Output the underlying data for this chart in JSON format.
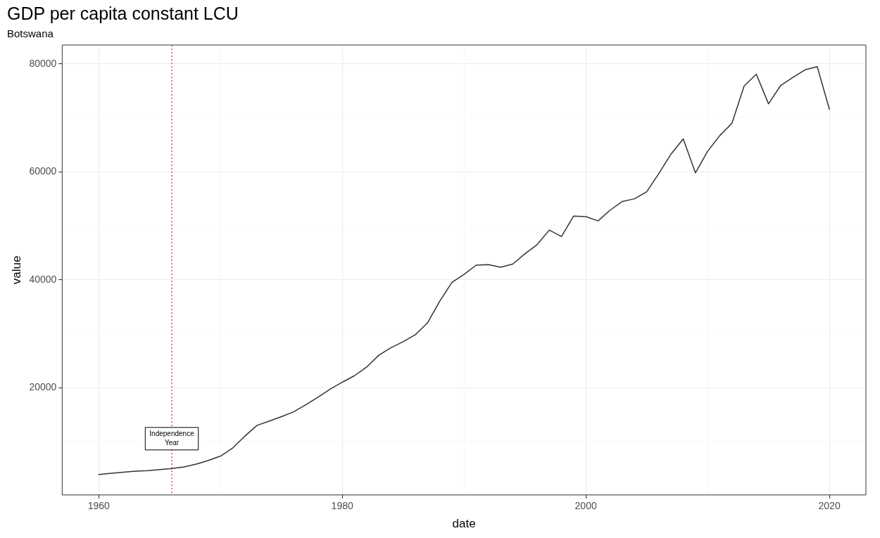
{
  "chart_data": {
    "type": "line",
    "title": "GDP per capita constant LCU",
    "subtitle": "Botswana",
    "xlabel": "date",
    "ylabel": "value",
    "x": [
      1960,
      1961,
      1962,
      1963,
      1964,
      1965,
      1966,
      1967,
      1968,
      1969,
      1970,
      1971,
      1972,
      1973,
      1974,
      1975,
      1976,
      1977,
      1978,
      1979,
      1980,
      1981,
      1982,
      1983,
      1984,
      1985,
      1986,
      1987,
      1988,
      1989,
      1990,
      1991,
      1992,
      1993,
      1994,
      1995,
      1996,
      1997,
      1998,
      1999,
      2000,
      2001,
      2002,
      2003,
      2004,
      2005,
      2006,
      2007,
      2008,
      2009,
      2010,
      2011,
      2012,
      2013,
      2014,
      2015,
      2016,
      2017,
      2018,
      2019,
      2020
    ],
    "series": [
      {
        "color": "#333333",
        "values": [
          3900,
          4100,
          4300,
          4500,
          4600,
          4800,
          5000,
          5300,
          5800,
          6500,
          7300,
          8800,
          11000,
          13000,
          13800,
          14600,
          15500,
          16800,
          18200,
          19700,
          21000,
          22200,
          23800,
          26000,
          27400,
          28500,
          29800,
          32000,
          36000,
          39500,
          41000,
          42700,
          42800,
          42300,
          42900,
          44800,
          46500,
          49200,
          48000,
          51800,
          51700,
          50900,
          52900,
          54500,
          55000,
          56300,
          59700,
          63300,
          66100,
          59800,
          63800,
          66700,
          69000,
          75900,
          78100,
          72600,
          76000,
          77500,
          78900,
          79500,
          71600
        ]
      }
    ],
    "xlim": [
      1957,
      2023
    ],
    "xticks": [
      1960,
      {
        "value": 1970,
        "label": null
      },
      1980,
      {
        "value": 1990,
        "label": null
      },
      2000,
      {
        "value": 2010,
        "label": null
      },
      2020
    ],
    "ylim": [
      100,
      83500
    ],
    "yticks": [
      {
        "value": 10000,
        "label": null
      },
      20000,
      {
        "value": 30000,
        "label": null
      },
      40000,
      {
        "value": 50000,
        "label": null
      },
      60000,
      {
        "value": 70000,
        "label": null
      },
      80000
    ],
    "grid": true,
    "legend": false,
    "marker": "none",
    "line_style": "solid",
    "ref_lines": [
      {
        "axis": "x",
        "value": 1966,
        "label": "Independence Year",
        "color": "#e41a1c",
        "line_style": "dotted"
      }
    ]
  }
}
